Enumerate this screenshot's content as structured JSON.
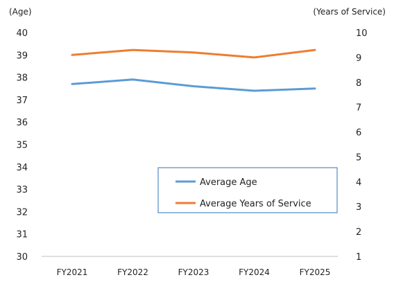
{
  "chart_data": {
    "type": "line",
    "categories": [
      "FY2021",
      "FY2022",
      "FY2023",
      "FY2024",
      "FY2025"
    ],
    "y_left": {
      "unit_label": "(Age)",
      "range": [
        30,
        40
      ],
      "ticks": [
        30,
        31,
        32,
        33,
        34,
        35,
        36,
        37,
        38,
        39,
        40
      ]
    },
    "y_right": {
      "unit_label": "(Years of Service)",
      "range": [
        1,
        10
      ],
      "ticks": [
        1,
        2,
        3,
        4,
        5,
        6,
        7,
        8,
        9,
        10
      ]
    },
    "series": [
      {
        "name": "Average Age",
        "axis": "left",
        "color": "#5B9BD5",
        "values": [
          37.7,
          37.9,
          37.6,
          37.4,
          37.5
        ]
      },
      {
        "name": "Average Years of Service",
        "axis": "right",
        "color": "#ED7D31",
        "values": [
          9.1,
          9.3,
          9.2,
          9.0,
          9.3
        ]
      }
    ],
    "grid": false,
    "legend": {
      "placement": "lower-right",
      "border_color": "#2E75B6"
    }
  }
}
